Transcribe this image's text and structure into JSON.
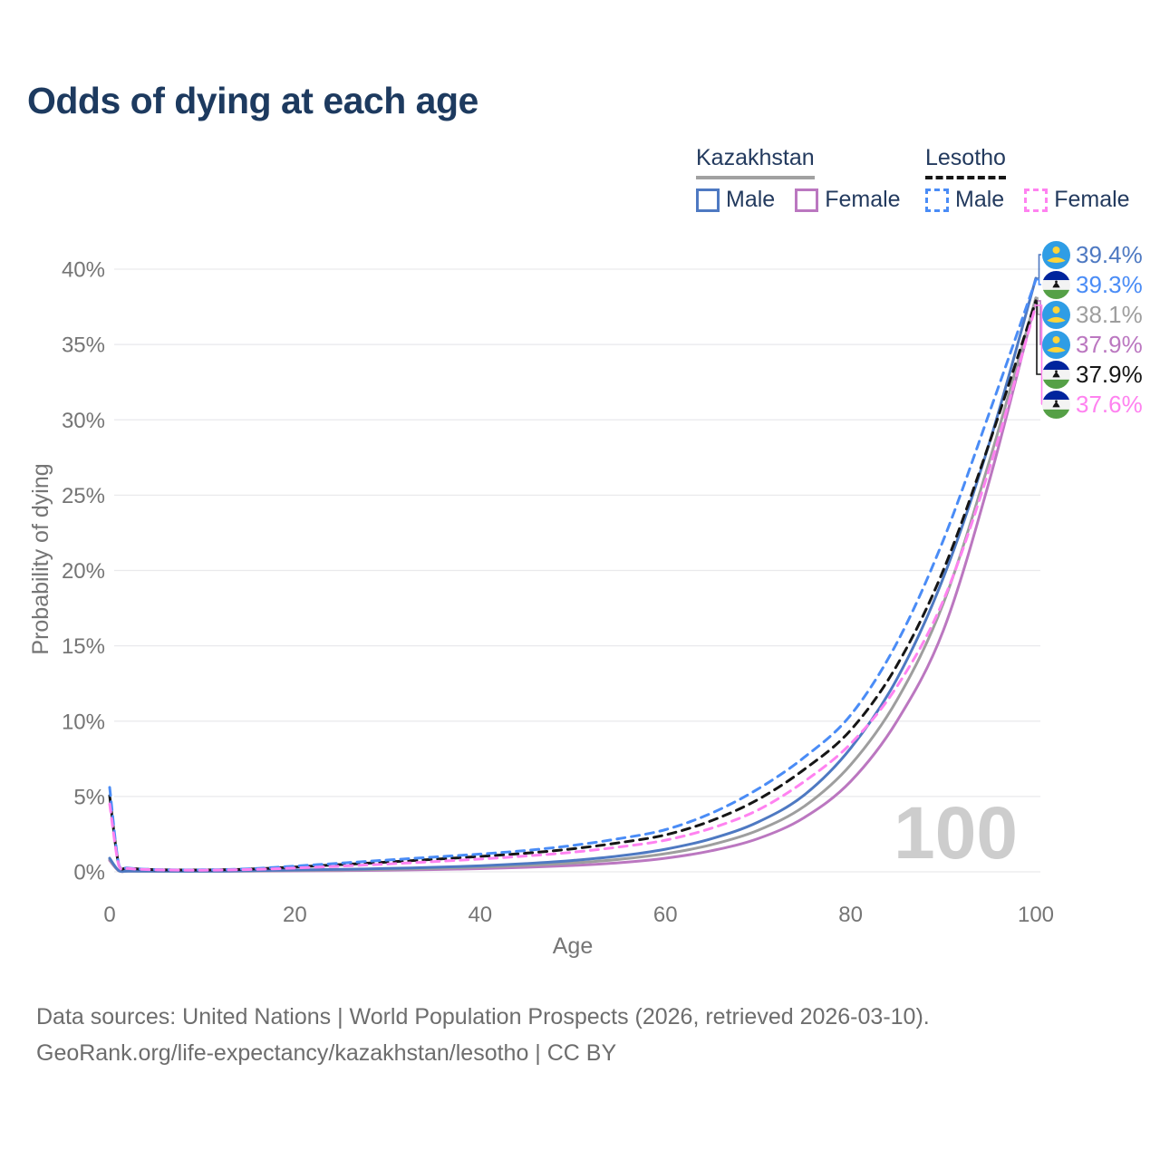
{
  "title": "Odds of dying at each age",
  "legend": {
    "groups": [
      {
        "label": "Kazakhstan",
        "style": "solid",
        "items": [
          {
            "label": "Male"
          },
          {
            "label": "Female"
          }
        ]
      },
      {
        "label": "Lesotho",
        "style": "dashed",
        "items": [
          {
            "label": "Male"
          },
          {
            "label": "Female"
          }
        ]
      }
    ]
  },
  "colors": {
    "title_navy": "#1d3a5f",
    "legend_text": "#233a5e",
    "axis_text": "#757575",
    "grid": "#e9e9ec",
    "watermark": "#cdcdcd",
    "kazakhstan_underline": "#a1a1a1",
    "lesotho_underline": "#161616",
    "kazakhstan_male": "#4e79c2",
    "kazakhstan_female": "#bb77c0",
    "kazakhstan_all": "#9e9e9e",
    "lesotho_male": "#4a8cf6",
    "lesotho_female": "#ff82f0",
    "lesotho_all": "#161616"
  },
  "chart_data": {
    "type": "line",
    "title": "Odds of dying at each age",
    "xlabel": "Age",
    "ylabel": "Probability of dying",
    "xlim": [
      0,
      100
    ],
    "ylim": [
      0,
      40
    ],
    "x_tick_values": [
      0,
      20,
      40,
      60,
      80,
      100
    ],
    "x_tick_labels": [
      "0",
      "20",
      "40",
      "60",
      "80",
      "100"
    ],
    "y_tick_values": [
      0,
      5,
      10,
      15,
      20,
      25,
      30,
      35,
      40
    ],
    "y_tick_labels": [
      "0%",
      "5%",
      "10%",
      "15%",
      "20%",
      "25%",
      "30%",
      "35%",
      "40%"
    ],
    "grid": true,
    "legend_position": "top-right",
    "watermark": "100",
    "ages": [
      0,
      1,
      2,
      5,
      10,
      15,
      20,
      25,
      30,
      35,
      40,
      45,
      50,
      55,
      60,
      65,
      70,
      75,
      80,
      85,
      90,
      95,
      100
    ],
    "unit": "percent",
    "series": [
      {
        "id": "kazakhstan_female",
        "name": "Kazakhstan Female",
        "country": "Kazakhstan",
        "sex": "Female",
        "line_style": "solid",
        "color": "#bb77c0",
        "end_label": "37.9%",
        "values": [
          0.75,
          0.06,
          0.04,
          0.03,
          0.03,
          0.04,
          0.06,
          0.08,
          0.11,
          0.15,
          0.21,
          0.3,
          0.42,
          0.6,
          0.9,
          1.4,
          2.2,
          3.6,
          6.0,
          10.0,
          16.0,
          26.0,
          37.9
        ]
      },
      {
        "id": "kazakhstan_all",
        "name": "Kazakhstan Both sexes",
        "country": "Kazakhstan",
        "sex": "All",
        "line_style": "solid",
        "color": "#9e9e9e",
        "end_label": "38.1%",
        "values": [
          0.83,
          0.065,
          0.045,
          0.035,
          0.035,
          0.055,
          0.09,
          0.12,
          0.17,
          0.23,
          0.31,
          0.43,
          0.59,
          0.83,
          1.2,
          1.8,
          2.75,
          4.35,
          7.1,
          11.4,
          17.8,
          27.3,
          38.1
        ]
      },
      {
        "id": "kazakhstan_male",
        "name": "Kazakhstan Male",
        "country": "Kazakhstan",
        "sex": "Male",
        "line_style": "solid",
        "color": "#4e79c2",
        "end_label": "39.4%",
        "values": [
          0.9,
          0.07,
          0.05,
          0.04,
          0.04,
          0.07,
          0.12,
          0.16,
          0.22,
          0.3,
          0.4,
          0.55,
          0.75,
          1.05,
          1.5,
          2.2,
          3.3,
          5.1,
          8.2,
          12.8,
          19.5,
          28.5,
          39.4
        ]
      },
      {
        "id": "lesotho_all",
        "name": "Lesotho Both sexes",
        "country": "Lesotho",
        "sex": "All",
        "line_style": "dashed",
        "color": "#161616",
        "end_label": "37.9%",
        "values": [
          5.05,
          0.42,
          0.24,
          0.14,
          0.12,
          0.18,
          0.32,
          0.48,
          0.65,
          0.83,
          1.02,
          1.24,
          1.53,
          1.93,
          2.45,
          3.4,
          4.8,
          6.8,
          9.4,
          13.7,
          20.0,
          28.5,
          37.9
        ]
      },
      {
        "id": "lesotho_male",
        "name": "Lesotho Male",
        "country": "Lesotho",
        "sex": "Male",
        "line_style": "dashed",
        "color": "#4a8cf6",
        "end_label": "39.3%",
        "values": [
          5.6,
          0.45,
          0.25,
          0.15,
          0.13,
          0.2,
          0.38,
          0.58,
          0.78,
          0.98,
          1.18,
          1.42,
          1.75,
          2.2,
          2.8,
          3.9,
          5.5,
          7.6,
          10.4,
          15.2,
          22.0,
          30.5,
          39.3
        ]
      },
      {
        "id": "lesotho_female",
        "name": "Lesotho Female",
        "country": "Lesotho",
        "sex": "Female",
        "line_style": "dashed",
        "color": "#ff82f0",
        "end_label": "37.6%",
        "values": [
          4.5,
          0.4,
          0.22,
          0.13,
          0.11,
          0.15,
          0.25,
          0.38,
          0.52,
          0.68,
          0.85,
          1.05,
          1.3,
          1.65,
          2.1,
          2.9,
          4.1,
          6.0,
          8.5,
          12.3,
          18.0,
          26.8,
          37.6
        ]
      }
    ]
  },
  "end_labels": [
    {
      "text": "39.4%",
      "value": 39.4,
      "series": "kazakhstan_male",
      "flag": "kazakhstan",
      "color": "#4e79c2"
    },
    {
      "text": "39.3%",
      "value": 39.3,
      "series": "lesotho_male",
      "flag": "lesotho",
      "color": "#4a8cf6"
    },
    {
      "text": "38.1%",
      "value": 38.1,
      "series": "kazakhstan_all",
      "flag": "kazakhstan",
      "color": "#9e9e9e"
    },
    {
      "text": "37.9%",
      "value": 37.9,
      "series": "kazakhstan_female",
      "flag": "kazakhstan",
      "color": "#bb77c0"
    },
    {
      "text": "37.9%",
      "value": 37.9,
      "series": "lesotho_all",
      "flag": "lesotho",
      "color": "#161616"
    },
    {
      "text": "37.6%",
      "value": 37.6,
      "series": "lesotho_female",
      "flag": "lesotho",
      "color": "#ff82f0"
    }
  ],
  "footer": {
    "line1": "Data sources: United Nations | World Population Prospects (2026, retrieved 2026-03-10).",
    "line2": "GeoRank.org/life-expectancy/kazakhstan/lesotho | CC BY"
  }
}
